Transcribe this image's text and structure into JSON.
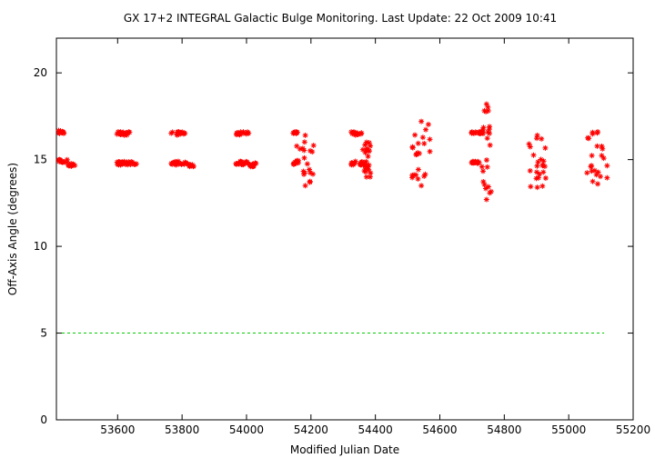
{
  "chart_data": {
    "type": "scatter",
    "title": "GX 17+2   INTEGRAL Galactic Bulge Monitoring.  Last Update: 22 Oct 2009 10:41",
    "xlabel": "Modified Julian Date",
    "ylabel": "Off-Axis Angle (degrees)",
    "xlim": [
      53410,
      55200
    ],
    "ylim": [
      0,
      22
    ],
    "xticks": [
      53600,
      53800,
      54000,
      54200,
      54400,
      54600,
      54800,
      55000,
      55200
    ],
    "yticks": [
      0,
      5,
      10,
      15,
      20
    ],
    "xtick_labels": [
      "53600",
      "53800",
      "54000",
      "54200",
      "54400",
      "54600",
      "54800",
      "55000",
      "55200"
    ],
    "ytick_labels": [
      "0",
      "5",
      "10",
      "15",
      "20"
    ],
    "grid": false,
    "legend": "none",
    "colors": {
      "points": "#ff0000",
      "reference_line": "#00cc00",
      "axes": "#000000"
    },
    "reference_line": {
      "y": 5.0,
      "x_range": [
        53410,
        55110
      ],
      "style": "dashed"
    },
    "series": [
      {
        "marker": "asterisk",
        "clusters": [
          {
            "x": [
              53415,
              53442
            ],
            "y": [
              16.5,
              16.7
            ]
          },
          {
            "x": [
              53415,
              53445
            ],
            "y": [
              14.8,
              15.0
            ]
          },
          {
            "x": [
              53446,
              53468
            ],
            "y": [
              14.6,
              14.8
            ]
          },
          {
            "x": [
              53598,
              53640
            ],
            "y": [
              16.4,
              16.6
            ]
          },
          {
            "x": [
              53598,
              53665
            ],
            "y": [
              14.7,
              14.9
            ]
          },
          {
            "x": [
              53765,
              53810
            ],
            "y": [
              16.4,
              16.6
            ]
          },
          {
            "x": [
              53765,
              53815
            ],
            "y": [
              14.7,
              14.9
            ]
          },
          {
            "x": [
              53815,
              53838
            ],
            "y": [
              14.6,
              14.8
            ]
          },
          {
            "x": [
              53965,
              54008
            ],
            "y": [
              16.4,
              16.6
            ]
          },
          {
            "x": [
              53965,
              54010
            ],
            "y": [
              14.7,
              14.9
            ]
          },
          {
            "x": [
              54010,
              54030
            ],
            "y": [
              14.6,
              14.8
            ]
          },
          {
            "x": [
              54145,
              54160
            ],
            "y": [
              16.5,
              16.6
            ]
          },
          {
            "x": [
              54145,
              54165
            ],
            "y": [
              14.7,
              14.9
            ]
          },
          {
            "x": [
              54155,
              54210
            ],
            "y": [
              13.5,
              16.4
            ]
          },
          {
            "x": [
              54325,
              54360
            ],
            "y": [
              16.4,
              16.6
            ]
          },
          {
            "x": [
              54325,
              54370
            ],
            "y": [
              14.7,
              14.9
            ]
          },
          {
            "x": [
              54360,
              54385
            ],
            "y": [
              14.0,
              16.0
            ]
          },
          {
            "x": [
              54510,
              54575
            ],
            "y": [
              13.5,
              17.2
            ]
          },
          {
            "x": [
              54695,
              54735
            ],
            "y": [
              16.5,
              16.6
            ]
          },
          {
            "x": [
              54695,
              54730
            ],
            "y": [
              14.8,
              14.9
            ]
          },
          {
            "x": [
              54730,
              54760
            ],
            "y": [
              12.7,
              18.2
            ]
          },
          {
            "x": [
              54875,
              54930
            ],
            "y": [
              13.4,
              16.4
            ]
          },
          {
            "x": [
              55055,
              55125
            ],
            "y": [
              13.6,
              16.6
            ]
          }
        ]
      }
    ]
  }
}
